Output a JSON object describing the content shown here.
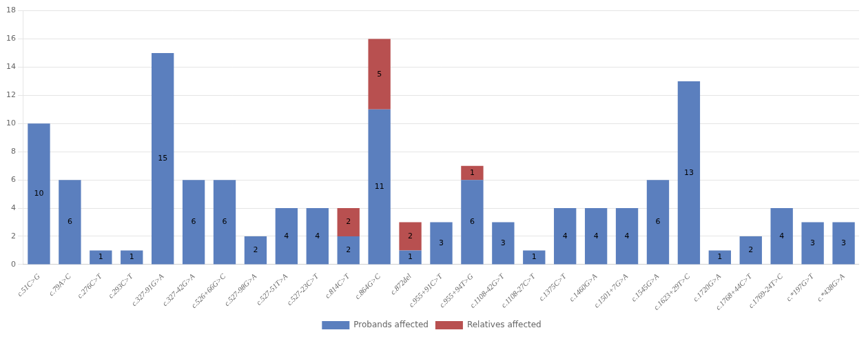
{
  "chart_data": {
    "type": "bar",
    "stacked": true,
    "categories": [
      "c.51C>G",
      "c.79A>C",
      "c.276C>T",
      "c.293C>T",
      "c.327-91G>A",
      "c.327-42G>A",
      "c.526+66G>C",
      "c.527-98G>A",
      "c.527-51T>A",
      "c.527-23C>T",
      "c.814C>T",
      "c.864G>C",
      "c.872del",
      "c.955+91C>T",
      "c.955+94T>G",
      "c.1108-42G>T",
      "c.1108-27C>T",
      "c.1375C>T",
      "c.1460G>A",
      "c.1501+7G>A",
      "c.1545G>A",
      "c.1623+29T>C",
      "c.1720G>A",
      "c.1768+44C>T",
      "c.1769-24T>C",
      "c.*197G>T",
      "c.*438G>A"
    ],
    "series": [
      {
        "name": "Probands affected",
        "color": "#5b7fbe",
        "values": [
          10,
          6,
          1,
          1,
          15,
          6,
          6,
          2,
          4,
          4,
          2,
          11,
          1,
          3,
          6,
          3,
          1,
          4,
          4,
          4,
          6,
          13,
          1,
          2,
          4,
          3,
          3
        ]
      },
      {
        "name": "Relatives affected",
        "color": "#b85050",
        "values": [
          0,
          0,
          0,
          0,
          0,
          0,
          0,
          0,
          0,
          0,
          2,
          5,
          2,
          0,
          1,
          0,
          0,
          0,
          0,
          0,
          0,
          0,
          0,
          0,
          0,
          0,
          0
        ]
      }
    ],
    "ylim": [
      0,
      18
    ],
    "yticks": [
      0,
      2,
      4,
      6,
      8,
      10,
      12,
      14,
      16,
      18
    ],
    "grid": true,
    "legend": "bottom",
    "data_labels": true
  }
}
